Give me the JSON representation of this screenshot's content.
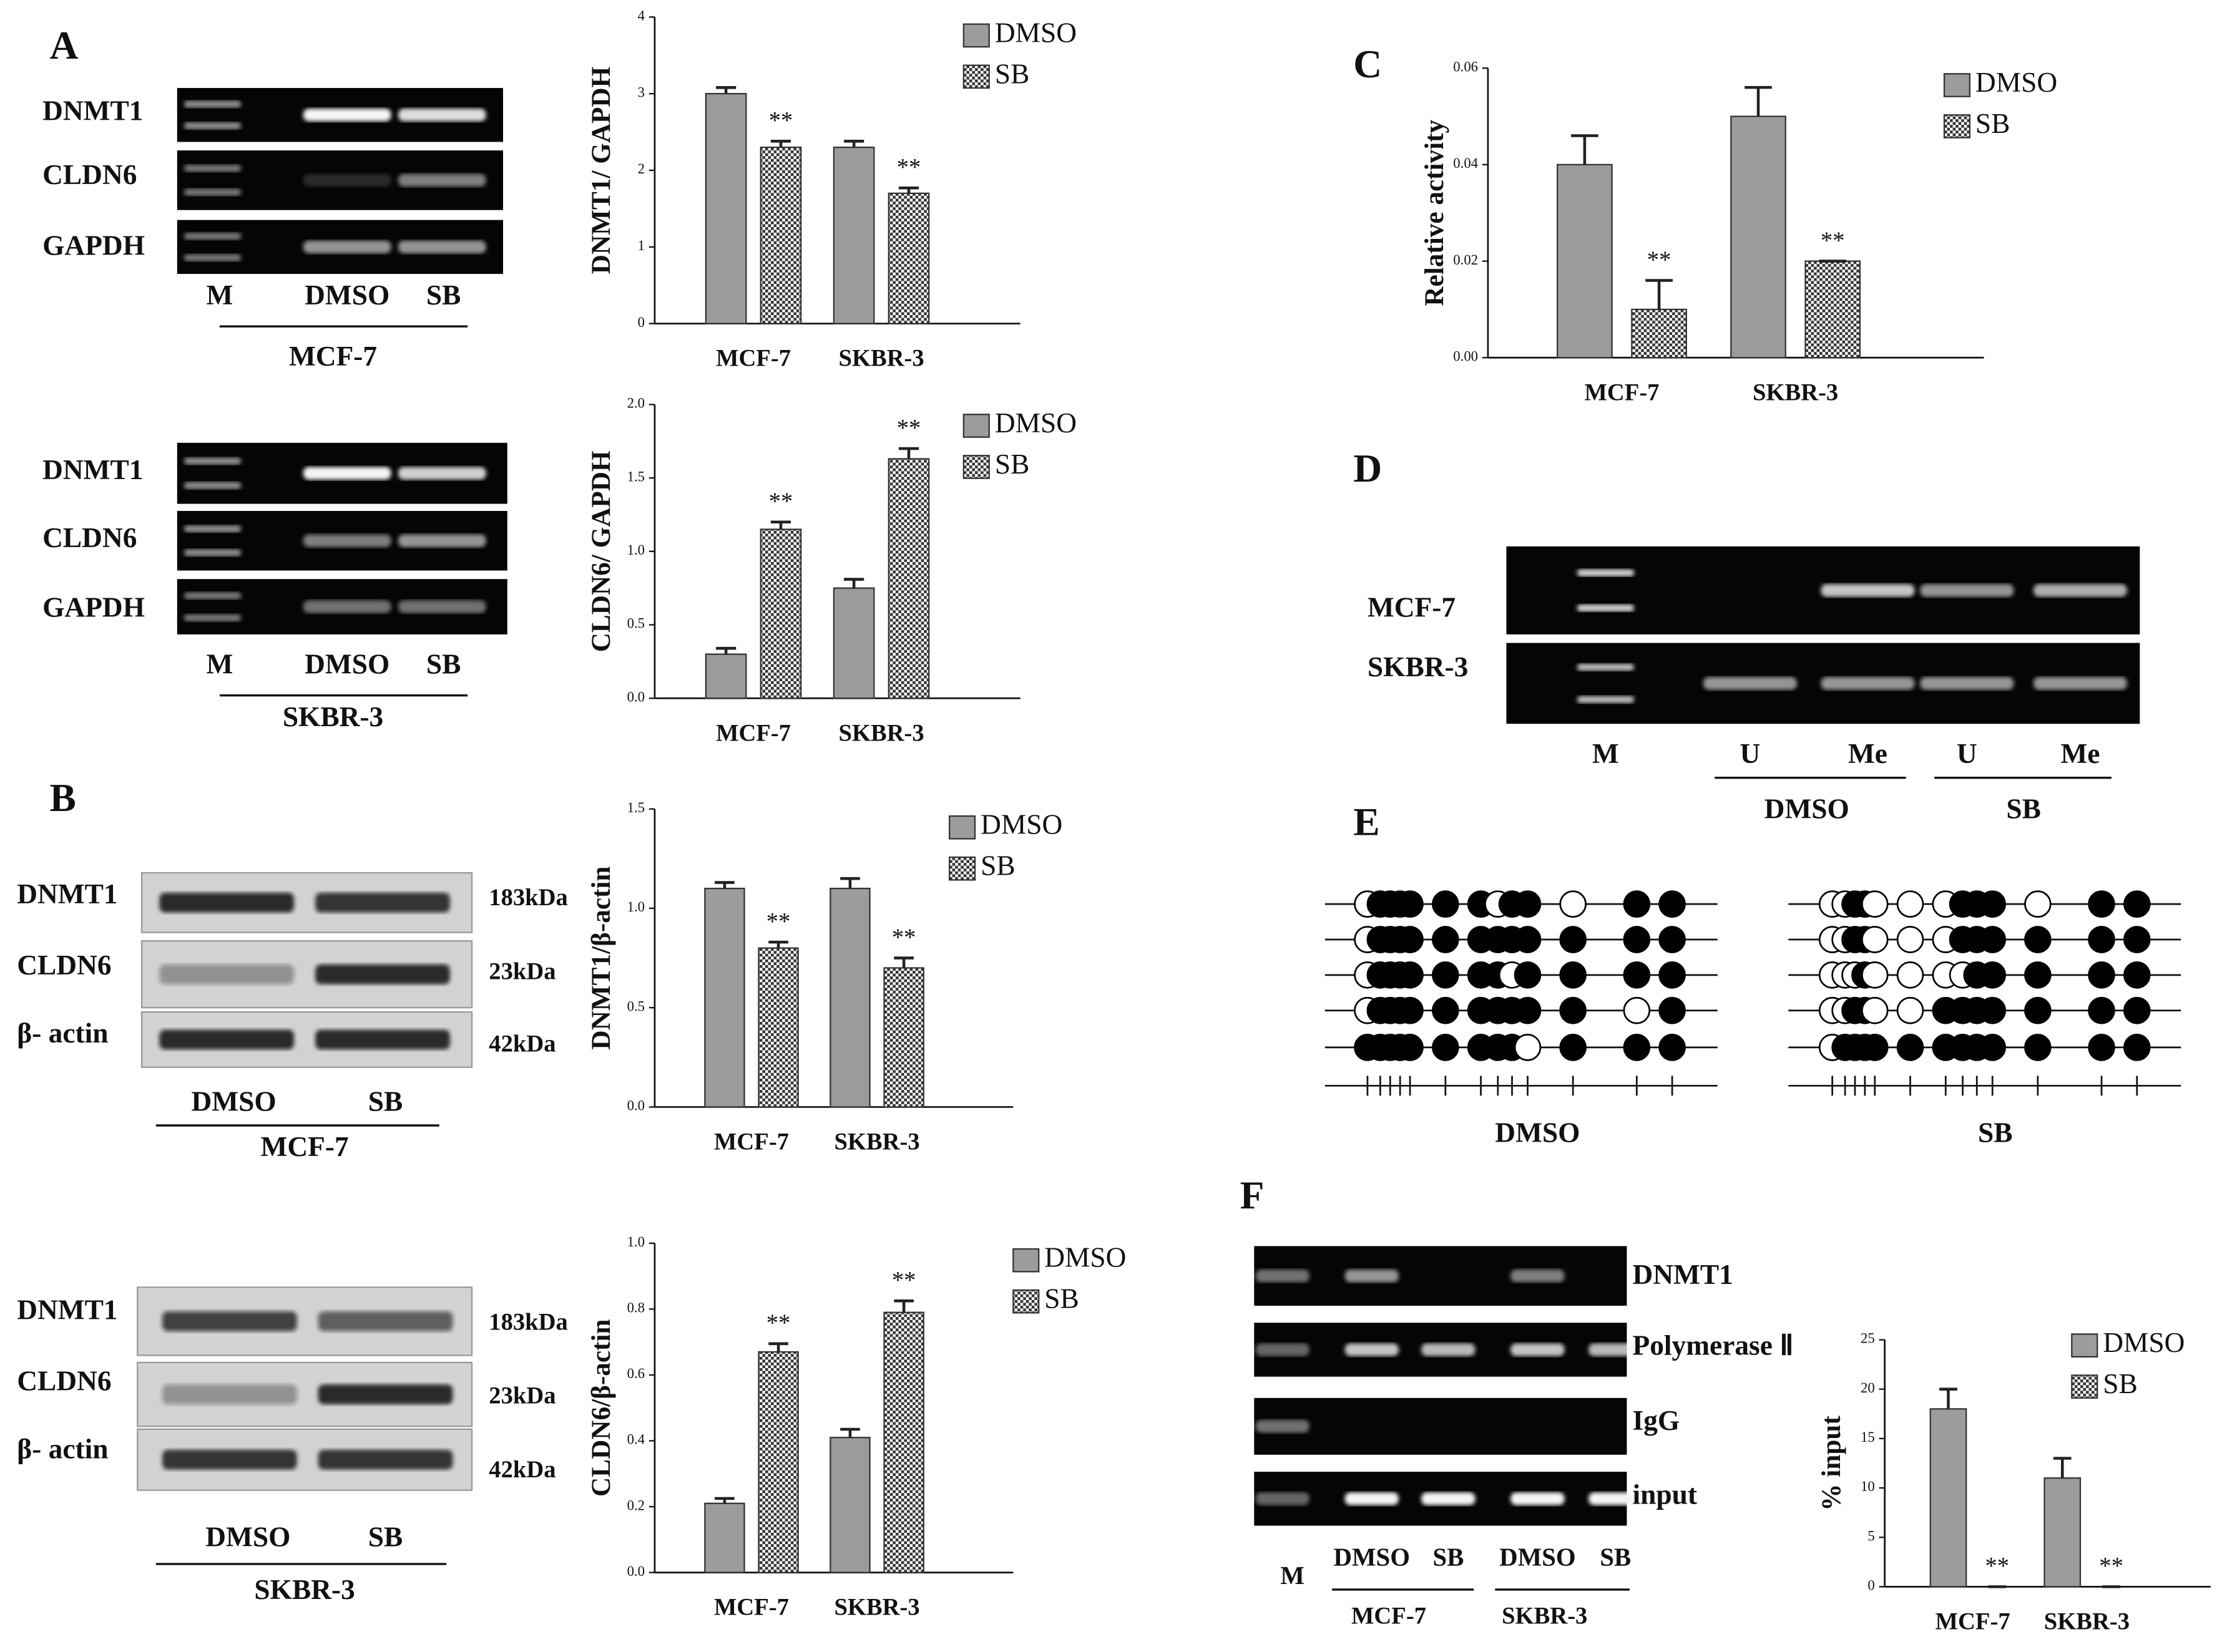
{
  "panels": {
    "A": {
      "letter": "A",
      "gels": [
        {
          "rows": [
            "DNMT1",
            "CLDN6",
            "GAPDH"
          ],
          "lanes": [
            "M",
            "DMSO",
            "SB"
          ],
          "cell": "MCF-7"
        },
        {
          "rows": [
            "DNMT1",
            "CLDN6",
            "GAPDH"
          ],
          "lanes": [
            "M",
            "DMSO",
            "SB"
          ],
          "cell": "SKBR-3"
        }
      ]
    },
    "B": {
      "letter": "B",
      "blots": [
        {
          "rows": [
            "DNMT1",
            "CLDN6",
            "β- actin"
          ],
          "sizes": [
            "183kDa",
            "23kDa",
            "42kDa"
          ],
          "lanes": [
            "DMSO",
            "SB"
          ],
          "cell": "MCF-7"
        },
        {
          "rows": [
            "DNMT1",
            "CLDN6",
            "β- actin"
          ],
          "sizes": [
            "183kDa",
            "23kDa",
            "42kDa"
          ],
          "lanes": [
            "DMSO",
            "SB"
          ],
          "cell": "SKBR-3"
        }
      ]
    },
    "C": {
      "letter": "C"
    },
    "D": {
      "letter": "D",
      "rows": [
        "MCF-7",
        "SKBR-3"
      ],
      "lanes": [
        "M",
        "U",
        "Me",
        "U",
        "Me"
      ],
      "groups": [
        "DMSO",
        "SB"
      ]
    },
    "E": {
      "letter": "E",
      "groups": [
        "DMSO",
        "SB"
      ]
    },
    "F": {
      "letter": "F",
      "rows": [
        "DNMT1",
        "Polymerase Ⅱ",
        "IgG",
        "input"
      ],
      "lanes": [
        "M",
        "DMSO",
        "SB",
        "DMSO",
        "SB"
      ],
      "cells": [
        "MCF-7",
        "SKBR-3"
      ]
    }
  },
  "chart_data": [
    {
      "type": "bar",
      "y_label": "DNMT1/ GAPDH",
      "categories": [
        "MCF-7",
        "SKBR-3"
      ],
      "series": [
        {
          "name": "DMSO",
          "color": "#9c9c9c",
          "values": [
            3.0,
            2.3
          ],
          "errors": [
            0.08,
            0.08
          ]
        },
        {
          "name": "SB",
          "color": "#ffffff",
          "pattern": "checker",
          "values": [
            2.3,
            1.7
          ],
          "errors": [
            0.08,
            0.07
          ],
          "annotations": [
            "**",
            "**"
          ]
        }
      ],
      "ylim": [
        0,
        4
      ],
      "yticks": [
        0,
        1,
        2,
        3,
        4
      ],
      "legend": "upper right"
    },
    {
      "type": "bar",
      "y_label": "CLDN6/ GAPDH",
      "categories": [
        "MCF-7",
        "SKBR-3"
      ],
      "series": [
        {
          "name": "DMSO",
          "color": "#9c9c9c",
          "values": [
            0.3,
            0.75
          ],
          "errors": [
            0.04,
            0.06
          ]
        },
        {
          "name": "SB",
          "color": "#ffffff",
          "pattern": "checker",
          "values": [
            1.15,
            1.63
          ],
          "errors": [
            0.05,
            0.07
          ],
          "annotations": [
            "**",
            "**"
          ]
        }
      ],
      "ylim": [
        0,
        2
      ],
      "yticks": [
        {
          "value": 0,
          "label": "0.0"
        },
        0.5,
        {
          "value": 1,
          "label": "1.0"
        },
        1.5,
        {
          "value": 2,
          "label": "2.0"
        }
      ],
      "legend": "upper right"
    },
    {
      "type": "bar",
      "y_label": "DNMT1/β-actin",
      "categories": [
        "MCF-7",
        "SKBR-3"
      ],
      "series": [
        {
          "name": "DMSO",
          "color": "#9c9c9c",
          "values": [
            1.1,
            1.1
          ],
          "errors": [
            0.03,
            0.05
          ]
        },
        {
          "name": "SB",
          "color": "#ffffff",
          "pattern": "checker",
          "values": [
            0.8,
            0.7
          ],
          "errors": [
            0.03,
            0.05
          ],
          "annotations": [
            "**",
            "**"
          ]
        }
      ],
      "ylim": [
        0,
        1.5
      ],
      "yticks": [
        {
          "value": 0,
          "label": "0.0"
        },
        0.5,
        {
          "value": 1,
          "label": "1.0"
        },
        1.5
      ],
      "legend": "upper right"
    },
    {
      "type": "bar",
      "y_label": "CLDN6/β-actin",
      "categories": [
        "MCF-7",
        "SKBR-3"
      ],
      "series": [
        {
          "name": "DMSO",
          "color": "#9c9c9c",
          "values": [
            0.21,
            0.41
          ],
          "errors": [
            0.015,
            0.025
          ]
        },
        {
          "name": "SB",
          "color": "#ffffff",
          "pattern": "checker",
          "values": [
            0.67,
            0.79
          ],
          "errors": [
            0.025,
            0.035
          ],
          "annotations": [
            "**",
            "**"
          ]
        }
      ],
      "ylim": [
        0,
        1
      ],
      "yticks": [
        {
          "value": 0,
          "label": "0.0"
        },
        0.2,
        0.4,
        0.6,
        0.8,
        {
          "value": 1,
          "label": "1.0"
        }
      ],
      "legend": "upper right"
    },
    {
      "type": "bar",
      "y_label": "Relative activity",
      "categories": [
        "MCF-7",
        "SKBR-3"
      ],
      "series": [
        {
          "name": "DMSO",
          "color": "#9c9c9c",
          "values": [
            0.04,
            0.05
          ],
          "errors": [
            0.006,
            0.006
          ]
        },
        {
          "name": "SB",
          "color": "#ffffff",
          "pattern": "checker",
          "values": [
            0.01,
            0.02
          ],
          "errors": [
            0.006,
            0
          ],
          "annotations": [
            "**",
            "**"
          ]
        }
      ],
      "ylim": [
        0,
        0.06
      ],
      "yticks": [
        {
          "value": 0,
          "label": "0.00"
        },
        0.02,
        0.04,
        0.06
      ],
      "legend": "upper right"
    },
    {
      "type": "bar",
      "y_label": "% input",
      "categories": [
        "MCF-7",
        "SKBR-3"
      ],
      "series": [
        {
          "name": "DMSO",
          "color": "#9c9c9c",
          "values": [
            18,
            11
          ],
          "errors": [
            2,
            2
          ]
        },
        {
          "name": "SB",
          "color": "#ffffff",
          "pattern": "checker",
          "values": [
            0,
            0
          ],
          "errors": [
            0,
            0
          ],
          "annotations": [
            "**",
            "**"
          ]
        }
      ],
      "ylim": [
        0,
        25
      ],
      "yticks": [
        0,
        5,
        10,
        15,
        20,
        25
      ],
      "legend": "upper right"
    }
  ]
}
